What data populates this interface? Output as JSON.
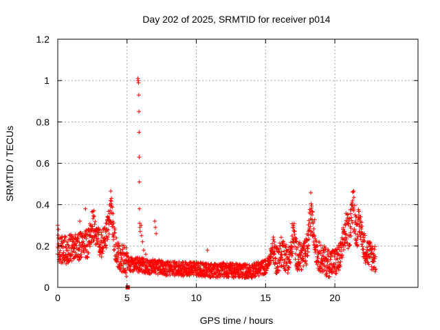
{
  "chart_data": {
    "type": "scatter",
    "title": "Day 202 of 2025, SRMTID for receiver p014",
    "xlabel": "GPS time / hours",
    "ylabel": "SRMTID / TECUs",
    "xlim": [
      0,
      26
    ],
    "ylim": [
      0,
      1.2
    ],
    "xticks": [
      0,
      5,
      10,
      15,
      20
    ],
    "yticks": [
      0,
      0.2,
      0.4,
      0.6,
      0.8,
      1,
      1.2
    ],
    "xtick_labels": [
      "0",
      "5",
      "10",
      "15",
      "20"
    ],
    "ytick_labels": [
      "0",
      "0.2",
      "0.4",
      "0.6",
      "0.8",
      "1",
      "1.2"
    ],
    "grid": true,
    "marker": "+",
    "color": "#ff0000",
    "anomaly_marker": {
      "x": 5.05,
      "y": 0.0,
      "shape": "square",
      "color": "#cc0000"
    },
    "trend": [
      [
        0.0,
        0.19
      ],
      [
        0.5,
        0.18
      ],
      [
        1.0,
        0.19
      ],
      [
        1.5,
        0.2
      ],
      [
        2.0,
        0.21
      ],
      [
        2.5,
        0.21
      ],
      [
        3.0,
        0.21
      ],
      [
        3.5,
        0.22
      ],
      [
        3.8,
        0.23
      ],
      [
        4.0,
        0.2
      ],
      [
        4.5,
        0.15
      ],
      [
        5.0,
        0.12
      ],
      [
        5.5,
        0.11
      ],
      [
        6.0,
        0.11
      ],
      [
        6.5,
        0.1
      ],
      [
        7.0,
        0.1
      ],
      [
        8.0,
        0.09
      ],
      [
        9.0,
        0.09
      ],
      [
        10.0,
        0.09
      ],
      [
        11.0,
        0.08
      ],
      [
        12.0,
        0.085
      ],
      [
        13.0,
        0.08
      ],
      [
        14.0,
        0.08
      ],
      [
        15.0,
        0.1
      ],
      [
        15.5,
        0.12
      ],
      [
        16.0,
        0.13
      ],
      [
        16.8,
        0.14
      ],
      [
        17.0,
        0.15
      ],
      [
        17.5,
        0.15
      ],
      [
        18.0,
        0.15
      ],
      [
        18.3,
        0.2
      ],
      [
        18.6,
        0.17
      ],
      [
        19.0,
        0.14
      ],
      [
        19.5,
        0.12
      ],
      [
        20.0,
        0.12
      ],
      [
        20.5,
        0.15
      ],
      [
        21.0,
        0.2
      ],
      [
        21.3,
        0.22
      ],
      [
        21.6,
        0.22
      ],
      [
        22.0,
        0.2
      ],
      [
        22.5,
        0.16
      ],
      [
        22.9,
        0.14
      ]
    ],
    "peaks": [
      {
        "x": 2.6,
        "height": 0.12,
        "width": 0.25
      },
      {
        "x": 3.8,
        "height": 0.2,
        "width": 0.25
      },
      {
        "x": 15.5,
        "height": 0.08,
        "width": 0.2
      },
      {
        "x": 16.2,
        "height": 0.06,
        "width": 0.2
      },
      {
        "x": 17.0,
        "height": 0.13,
        "width": 0.15
      },
      {
        "x": 18.3,
        "height": 0.2,
        "width": 0.25
      },
      {
        "x": 20.8,
        "height": 0.12,
        "width": 0.25
      },
      {
        "x": 21.3,
        "height": 0.22,
        "width": 0.2
      },
      {
        "x": 21.8,
        "height": 0.12,
        "width": 0.2
      }
    ],
    "spikes": [
      {
        "x": 5.78,
        "y": 1.01
      },
      {
        "x": 5.8,
        "y": 1.0
      },
      {
        "x": 5.83,
        "y": 0.99
      },
      {
        "x": 5.85,
        "y": 0.93
      },
      {
        "x": 5.86,
        "y": 0.85
      },
      {
        "x": 5.87,
        "y": 0.75
      },
      {
        "x": 5.88,
        "y": 0.63
      },
      {
        "x": 5.89,
        "y": 0.51
      },
      {
        "x": 5.9,
        "y": 0.38
      },
      {
        "x": 5.91,
        "y": 0.31
      },
      {
        "x": 5.93,
        "y": 0.29
      },
      {
        "x": 5.95,
        "y": 0.27
      },
      {
        "x": 6.02,
        "y": 0.3
      },
      {
        "x": 6.05,
        "y": 0.25
      },
      {
        "x": 6.12,
        "y": 0.22
      },
      {
        "x": 6.2,
        "y": 0.18
      },
      {
        "x": 6.35,
        "y": 0.16
      },
      {
        "x": 7.0,
        "y": 0.32
      },
      {
        "x": 7.05,
        "y": 0.29
      },
      {
        "x": 7.1,
        "y": 0.26
      },
      {
        "x": 10.8,
        "y": 0.18
      },
      {
        "x": 2.0,
        "y": 0.38
      },
      {
        "x": 1.6,
        "y": 0.32
      },
      {
        "x": 0.0,
        "y": 0.3
      },
      {
        "x": 0.05,
        "y": 0.28
      }
    ],
    "x_start": 0.0,
    "x_end": 22.95,
    "x_step": 0.012
  }
}
